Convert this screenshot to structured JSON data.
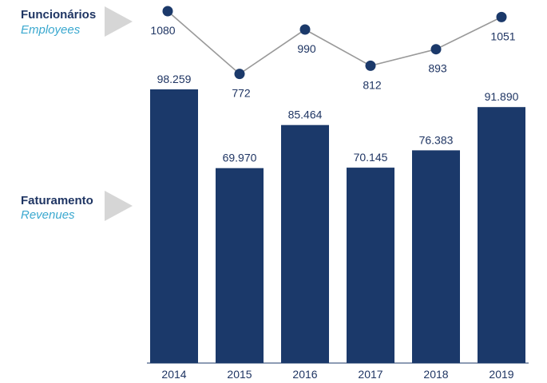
{
  "colors": {
    "bar": "#1b396a",
    "line": "#999999",
    "marker": "#1b396a",
    "arrow": "#d6d6d6",
    "label_pt": "#1f3563",
    "label_en": "#3aa8cf",
    "text": "#1f3563",
    "baseline": "#1b396a"
  },
  "legend": {
    "employees": {
      "label_pt": "Funcionários",
      "label_en": "Employees",
      "icon": "triangle-arrow-icon"
    },
    "revenues": {
      "label_pt": "Faturamento",
      "label_en": "Revenues",
      "icon": "triangle-arrow-icon"
    }
  },
  "chart_data": {
    "type": "bar",
    "categories": [
      "2014",
      "2015",
      "2016",
      "2017",
      "2018",
      "2019"
    ],
    "series": [
      {
        "name": "Faturamento / Revenues",
        "type": "bar",
        "values": [
          98259,
          69970,
          85464,
          70145,
          76383,
          91890
        ],
        "labels": [
          "98.259",
          "69.970",
          "85.464",
          "70.145",
          "76.383",
          "91.890"
        ]
      },
      {
        "name": "Funcionários / Employees",
        "type": "line",
        "values": [
          1080,
          772,
          990,
          812,
          893,
          1051
        ],
        "labels": [
          "1080",
          "772",
          "990",
          "812",
          "893",
          "1051"
        ]
      }
    ],
    "xlabel": "",
    "ylabel": "",
    "ylim_bars": [
      0,
      110000
    ],
    "ylim_line": [
      700,
      1080
    ],
    "grid": false,
    "legend_position": "left"
  }
}
